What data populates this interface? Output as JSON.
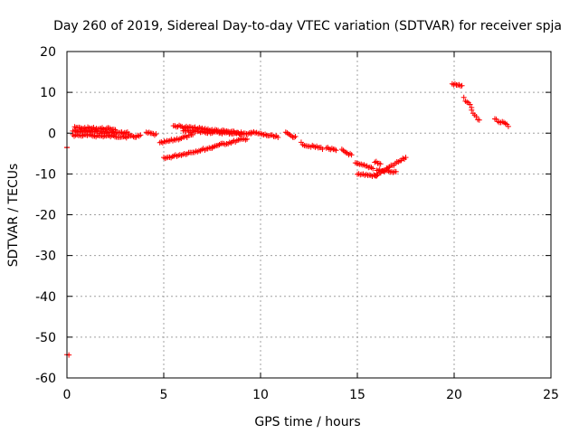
{
  "chart_data": {
    "type": "scatter",
    "title": "Day 260 of 2019, Sidereal Day-to-day VTEC variation (SDTVAR) for receiver spja",
    "xlabel": "GPS time / hours",
    "ylabel": "SDTVAR / TECUs",
    "xlim": [
      0,
      25
    ],
    "ylim": [
      -60,
      20
    ],
    "xticks": [
      0,
      5,
      10,
      15,
      20,
      25
    ],
    "yticks": [
      20,
      10,
      0,
      -10,
      -20,
      -30,
      -40,
      -50,
      -60
    ],
    "grid": true,
    "marker": "+",
    "colors": {
      "series": "#ff0000",
      "axes": "#000000",
      "grid": "#a0a0a0"
    },
    "segments": [
      {
        "x0": 0.0,
        "x1": 0.0,
        "y0": -3.5,
        "y1": -3.5
      },
      {
        "x0": 0.0,
        "x1": 0.1,
        "y0": -54.5,
        "y1": -54.5
      },
      {
        "x0": 0.3,
        "x1": 3.2,
        "y0": 0.5,
        "y1": 0.0
      },
      {
        "x0": 0.3,
        "x1": 3.0,
        "y0": -0.5,
        "y1": -0.8
      },
      {
        "x0": 0.4,
        "x1": 2.5,
        "y0": 1.3,
        "y1": 1.0
      },
      {
        "x0": 3.0,
        "x1": 3.8,
        "y0": -1.0,
        "y1": -0.7
      },
      {
        "x0": 4.1,
        "x1": 4.6,
        "y0": 0.1,
        "y1": -0.4
      },
      {
        "x0": 4.8,
        "x1": 6.5,
        "y0": -2.5,
        "y1": -0.5
      },
      {
        "x0": 5.0,
        "x1": 7.5,
        "y0": -6.2,
        "y1": -3.5
      },
      {
        "x0": 5.5,
        "x1": 9.0,
        "y0": 1.8,
        "y1": 0.0
      },
      {
        "x0": 6.0,
        "x1": 9.5,
        "y0": 0.5,
        "y1": -0.2
      },
      {
        "x0": 7.5,
        "x1": 9.3,
        "y0": -3.3,
        "y1": -1.3
      },
      {
        "x0": 9.5,
        "x1": 10.9,
        "y0": 0.2,
        "y1": -1.0
      },
      {
        "x0": 11.3,
        "x1": 11.8,
        "y0": 0.0,
        "y1": -1.0
      },
      {
        "x0": 12.1,
        "x1": 12.5,
        "y0": -2.5,
        "y1": -3.2
      },
      {
        "x0": 12.6,
        "x1": 13.2,
        "y0": -3.2,
        "y1": -3.7
      },
      {
        "x0": 13.4,
        "x1": 13.9,
        "y0": -3.6,
        "y1": -4.3
      },
      {
        "x0": 14.2,
        "x1": 14.7,
        "y0": -4.2,
        "y1": -5.4
      },
      {
        "x0": 14.9,
        "x1": 15.8,
        "y0": -7.5,
        "y1": -8.5
      },
      {
        "x0": 15.0,
        "x1": 16.0,
        "y0": -10.0,
        "y1": -10.5
      },
      {
        "x0": 15.9,
        "x1": 17.5,
        "y0": -10.5,
        "y1": -6.0
      },
      {
        "x0": 16.0,
        "x1": 17.0,
        "y0": -9.0,
        "y1": -9.5
      },
      {
        "x0": 15.9,
        "x1": 16.2,
        "y0": -7.0,
        "y1": -7.5
      },
      {
        "x0": 19.9,
        "x1": 20.4,
        "y0": 12.0,
        "y1": 11.5
      },
      {
        "x0": 20.5,
        "x1": 20.9,
        "y0": 8.5,
        "y1": 6.5
      },
      {
        "x0": 20.9,
        "x1": 21.3,
        "y0": 5.5,
        "y1": 3.0
      },
      {
        "x0": 22.1,
        "x1": 22.8,
        "y0": 3.3,
        "y1": 1.9
      }
    ]
  }
}
